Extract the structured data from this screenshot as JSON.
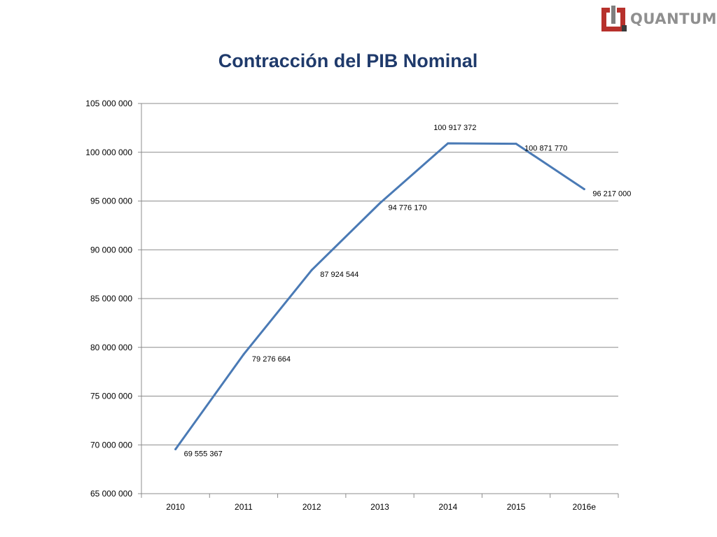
{
  "logo": {
    "text": "QUANTUM",
    "mark_color": "#b7312c",
    "text_color": "#8f8f8f"
  },
  "chart_data": {
    "type": "line",
    "title": "Contracción del PIB Nominal",
    "xlabel": "",
    "ylabel": "",
    "categories": [
      "2010",
      "2011",
      "2012",
      "2013",
      "2014",
      "2015",
      "2016e"
    ],
    "series": [
      {
        "values": [
          69555367,
          79276664,
          87924544,
          94776170,
          100917372,
          100871770,
          96217000
        ],
        "labels": [
          "69 555 367",
          "79 276 664",
          "87 924 544",
          "94 776 170",
          "100 917 372",
          "100 871 770",
          "96 217 000"
        ],
        "color": "#4a7ab5"
      }
    ],
    "ylim": [
      65000000,
      105000000
    ],
    "yticks": [
      65000000,
      70000000,
      75000000,
      80000000,
      85000000,
      90000000,
      95000000,
      100000000,
      105000000
    ],
    "ytick_labels": [
      "65 000 000",
      "70 000 000",
      "75 000 000",
      "80 000 000",
      "85 000 000",
      "90 000 000",
      "95 000 000",
      "100 000 000",
      "105 000 000"
    ],
    "grid": true,
    "legend": "none",
    "title_color": "#1f3a6b",
    "grid_color": "#8c8c8c"
  }
}
